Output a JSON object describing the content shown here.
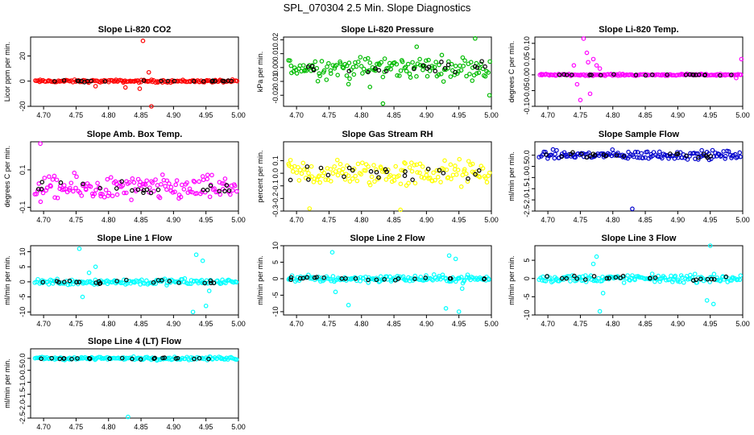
{
  "figure_title": "SPL_070304  2.5 Min. Slope Diagnostics",
  "chart_data": [
    {
      "type": "scatter",
      "title": "Slope Li-820 CO2",
      "ylabel": "Licor ppm per min.",
      "color": "#ff0000",
      "xlim": [
        4.68,
        5.0
      ],
      "ylim": [
        -20,
        35
      ],
      "yticks": [
        "-20",
        "0",
        "20"
      ],
      "ytick_values": [
        -20,
        0,
        20
      ],
      "xticks": [
        "4.70",
        "4.75",
        "4.80",
        "4.85",
        "4.90",
        "4.95",
        "5.00"
      ],
      "xtick_values": [
        4.7,
        4.75,
        4.8,
        4.85,
        4.9,
        4.95,
        5.0
      ],
      "noise": 0.8,
      "outliers": [
        [
          4.853,
          32
        ],
        [
          4.862,
          7
        ],
        [
          4.866,
          -20
        ],
        [
          4.848,
          -6
        ],
        [
          4.826,
          -5
        ],
        [
          4.78,
          -4
        ]
      ]
    },
    {
      "type": "scatter",
      "title": "Slope Li-820 Pressure",
      "ylabel": "kPa per min.",
      "color": "#00bb00",
      "xlim": [
        4.68,
        5.0
      ],
      "ylim": [
        -0.028,
        0.022
      ],
      "yticks": [
        "-0.02",
        "-0.01",
        "0.00",
        "0.01",
        "0.02"
      ],
      "ytick_values": [
        -0.02,
        -0.01,
        0,
        0.01,
        0.02
      ],
      "xticks": [
        "4.70",
        "4.75",
        "4.80",
        "4.85",
        "4.90",
        "4.95",
        "5.00"
      ],
      "xtick_values": [
        4.7,
        4.75,
        4.8,
        4.85,
        4.9,
        4.95,
        5.0
      ],
      "noise": 0.006,
      "outliers": [
        [
          4.833,
          -0.026
        ],
        [
          4.997,
          -0.02
        ],
        [
          4.975,
          0.021
        ],
        [
          4.813,
          -0.014
        ],
        [
          4.78,
          -0.012
        ],
        [
          4.885,
          0.015
        ]
      ]
    },
    {
      "type": "scatter",
      "title": "Slope Li-820 Temp.",
      "ylabel": "degrees C per min.",
      "color": "#ff00ff",
      "xlim": [
        4.68,
        5.0
      ],
      "ylim": [
        -0.1,
        0.12
      ],
      "yticks": [
        "-0.10",
        "-0.05",
        "0.00",
        "0.05",
        "0.10"
      ],
      "ytick_values": [
        -0.1,
        -0.05,
        0,
        0.05,
        0.1
      ],
      "xticks": [
        "4.70",
        "4.75",
        "4.80",
        "4.85",
        "4.90",
        "4.95",
        "5.00"
      ],
      "xtick_values": [
        4.7,
        4.75,
        4.8,
        4.85,
        4.9,
        4.95,
        5.0
      ],
      "noise": 0.002,
      "outliers": [
        [
          4.755,
          0.115
        ],
        [
          4.75,
          -0.08
        ],
        [
          4.76,
          0.07
        ],
        [
          4.77,
          0.05
        ],
        [
          4.74,
          0.03
        ],
        [
          4.765,
          -0.06
        ],
        [
          4.775,
          0.03
        ],
        [
          4.745,
          -0.03
        ],
        [
          4.78,
          0.02
        ],
        [
          4.762,
          0.04
        ],
        [
          4.998,
          0.05
        ],
        [
          4.99,
          -0.01
        ]
      ]
    },
    {
      "type": "scatter",
      "title": "Slope Amb. Box Temp.",
      "ylabel": "degrees C per min.",
      "color": "#ff00ff",
      "xlim": [
        4.68,
        5.0
      ],
      "ylim": [
        -0.12,
        0.25
      ],
      "yticks": [
        "-0.1",
        "0.1"
      ],
      "ytick_values": [
        -0.1,
        0.1
      ],
      "xticks": [
        "4.70",
        "4.75",
        "4.80",
        "4.85",
        "4.90",
        "4.95",
        "5.00"
      ],
      "xtick_values": [
        4.7,
        4.75,
        4.8,
        4.85,
        4.9,
        4.95,
        5.0
      ],
      "noise": 0.05,
      "outliers": [
        [
          4.695,
          0.24
        ]
      ]
    },
    {
      "type": "scatter",
      "title": "Slope Gas Stream RH",
      "ylabel": "percent per min.",
      "color": "#ffff00",
      "xlim": [
        4.68,
        5.0
      ],
      "ylim": [
        -0.3,
        0.25
      ],
      "yticks": [
        "-0.3",
        "-0.2",
        "-0.1",
        "0.0",
        "0.1"
      ],
      "ytick_values": [
        -0.3,
        -0.2,
        -0.1,
        0,
        0.1
      ],
      "xticks": [
        "4.70",
        "4.75",
        "4.80",
        "4.85",
        "4.90",
        "4.95",
        "5.00"
      ],
      "xtick_values": [
        4.7,
        4.75,
        4.8,
        4.85,
        4.9,
        4.95,
        5.0
      ],
      "noise": 0.08,
      "outliers": [
        [
          4.72,
          -0.28
        ],
        [
          4.86,
          -0.29
        ]
      ]
    },
    {
      "type": "scatter",
      "title": "Slope Sample Flow",
      "ylabel": "ml/min per min.",
      "color": "#0000cc",
      "xlim": [
        4.68,
        5.0
      ],
      "ylim": [
        -2.5,
        0.6
      ],
      "yticks": [
        "-2.5",
        "-2.0",
        "-1.5",
        "-1.0",
        "-0.5",
        "0.0"
      ],
      "ytick_values": [
        -2.5,
        -2.0,
        -1.5,
        -1.0,
        -0.5,
        0
      ],
      "xticks": [
        "4.70",
        "4.75",
        "4.80",
        "4.85",
        "4.90",
        "4.95",
        "5.00"
      ],
      "xtick_values": [
        4.7,
        4.75,
        4.8,
        4.85,
        4.9,
        4.95,
        5.0
      ],
      "noise": 0.15,
      "outliers": [
        [
          4.83,
          -2.4
        ]
      ]
    },
    {
      "type": "scatter",
      "title": "Slope Line 1 Flow",
      "ylabel": "ml/min per min.",
      "color": "#00ffff",
      "xlim": [
        4.68,
        5.0
      ],
      "ylim": [
        -11,
        12
      ],
      "yticks": [
        "-10",
        "-5",
        "0",
        "5",
        "10"
      ],
      "ytick_values": [
        -10,
        -5,
        0,
        5,
        10
      ],
      "xticks": [
        "4.70",
        "4.75",
        "4.80",
        "4.85",
        "4.90",
        "4.95",
        "5.00"
      ],
      "xtick_values": [
        4.7,
        4.75,
        4.8,
        4.85,
        4.9,
        4.95,
        5.0
      ],
      "noise": 0.8,
      "outliers": [
        [
          4.755,
          11
        ],
        [
          4.76,
          -5
        ],
        [
          4.77,
          3
        ],
        [
          4.78,
          5
        ],
        [
          4.93,
          -10
        ],
        [
          4.935,
          9
        ],
        [
          4.945,
          7
        ],
        [
          4.95,
          -8
        ],
        [
          4.955,
          -3
        ]
      ]
    },
    {
      "type": "scatter",
      "title": "Slope Line 2 Flow",
      "ylabel": "ml/min per min.",
      "color": "#00ffff",
      "xlim": [
        4.68,
        5.0
      ],
      "ylim": [
        -11,
        10
      ],
      "yticks": [
        "-10",
        "-5",
        "0",
        "5",
        "10"
      ],
      "ytick_values": [
        -10,
        -5,
        0,
        5,
        10
      ],
      "xticks": [
        "4.70",
        "4.75",
        "4.80",
        "4.85",
        "4.90",
        "4.95",
        "5.00"
      ],
      "xtick_values": [
        4.7,
        4.75,
        4.8,
        4.85,
        4.9,
        4.95,
        5.0
      ],
      "noise": 0.8,
      "outliers": [
        [
          4.755,
          8
        ],
        [
          4.76,
          -4
        ],
        [
          4.78,
          -8
        ],
        [
          4.93,
          -9
        ],
        [
          4.935,
          7
        ],
        [
          4.945,
          6
        ],
        [
          4.95,
          -10
        ],
        [
          4.955,
          -3
        ]
      ]
    },
    {
      "type": "scatter",
      "title": "Slope Line 3 Flow",
      "ylabel": "ml/min per min.",
      "color": "#00ffff",
      "xlim": [
        4.68,
        5.0
      ],
      "ylim": [
        -10,
        9
      ],
      "yticks": [
        "-10",
        "-5",
        "0",
        "5"
      ],
      "ytick_values": [
        -10,
        -5,
        0,
        5
      ],
      "xticks": [
        "4.70",
        "4.75",
        "4.80",
        "4.85",
        "4.90",
        "4.95",
        "5.00"
      ],
      "xtick_values": [
        4.7,
        4.75,
        4.8,
        4.85,
        4.9,
        4.95,
        5.0
      ],
      "noise": 0.8,
      "outliers": [
        [
          4.775,
          6
        ],
        [
          4.78,
          -9
        ],
        [
          4.77,
          4
        ],
        [
          4.785,
          -4
        ],
        [
          4.95,
          9
        ],
        [
          4.955,
          -7
        ],
        [
          4.945,
          -6
        ]
      ]
    },
    {
      "type": "scatter",
      "title": "Slope Line 4 (LT) Flow",
      "ylabel": "ml/min per min.",
      "color": "#00ffff",
      "xlim": [
        4.68,
        5.0
      ],
      "ylim": [
        -2.5,
        0.4
      ],
      "yticks": [
        "-2.5",
        "-2.0",
        "-1.5",
        "-1.0",
        "-0.5",
        "0.0"
      ],
      "ytick_values": [
        -2.5,
        -2.0,
        -1.5,
        -1.0,
        -0.5,
        0
      ],
      "xticks": [
        "4.70",
        "4.75",
        "4.80",
        "4.85",
        "4.90",
        "4.95",
        "5.00"
      ],
      "xtick_values": [
        4.7,
        4.75,
        4.8,
        4.85,
        4.9,
        4.95,
        5.0
      ],
      "noise": 0.05,
      "outliers": [
        [
          4.83,
          -2.45
        ]
      ]
    }
  ]
}
